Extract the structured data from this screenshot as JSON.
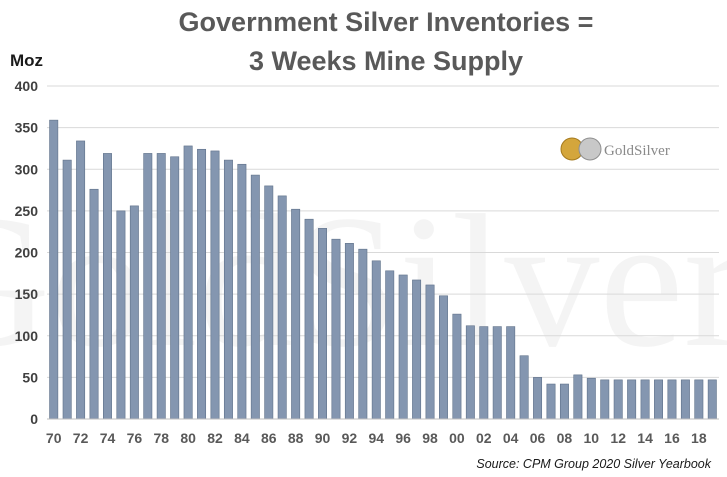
{
  "chart_data": {
    "type": "bar",
    "title_lines": [
      "Government Silver Inventories =",
      "3 Weeks Mine Supply"
    ],
    "ylabel": "Moz",
    "xlabel": "",
    "ylim": [
      0,
      400
    ],
    "yticks": [
      0,
      50,
      100,
      150,
      200,
      250,
      300,
      350,
      400
    ],
    "grid": true,
    "categories": [
      "70",
      "71",
      "72",
      "73",
      "74",
      "75",
      "76",
      "77",
      "78",
      "79",
      "80",
      "81",
      "82",
      "83",
      "84",
      "85",
      "86",
      "87",
      "88",
      "89",
      "90",
      "91",
      "92",
      "93",
      "94",
      "95",
      "96",
      "97",
      "98",
      "99",
      "00",
      "01",
      "02",
      "03",
      "04",
      "05",
      "06",
      "07",
      "08",
      "09",
      "10",
      "11",
      "12",
      "13",
      "14",
      "15",
      "16",
      "17",
      "18",
      "19"
    ],
    "tick_labels": [
      "70",
      "72",
      "74",
      "76",
      "78",
      "80",
      "82",
      "84",
      "86",
      "88",
      "90",
      "92",
      "94",
      "96",
      "98",
      "00",
      "02",
      "04",
      "06",
      "08",
      "10",
      "12",
      "14",
      "16",
      "18"
    ],
    "values": [
      359,
      311,
      334,
      276,
      319,
      250,
      256,
      319,
      319,
      315,
      328,
      324,
      322,
      311,
      306,
      293,
      280,
      268,
      252,
      240,
      229,
      216,
      211,
      204,
      190,
      178,
      173,
      167,
      161,
      148,
      126,
      112,
      111,
      111,
      111,
      76,
      50,
      42,
      42,
      53,
      49,
      47,
      47,
      47,
      47,
      47,
      47,
      47,
      47,
      47
    ],
    "bar_color": "#8496b0",
    "source": "Source: CPM Group 2020 Silver Yearbook",
    "logo_text": "GoldSilver",
    "watermark_text": "GoldSilver"
  }
}
